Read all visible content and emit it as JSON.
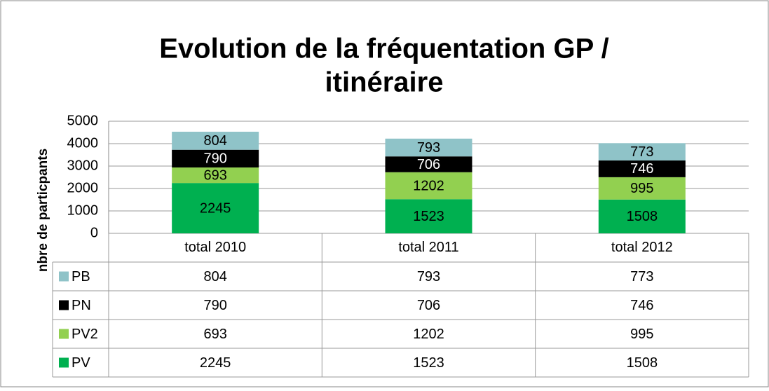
{
  "chart_data": {
    "type": "stacked_bar",
    "title": [
      "Evolution de la fréquentation GP /",
      "itinéraire"
    ],
    "y_label": "nbre de particpants",
    "categories": [
      "total 2010",
      "total 2011",
      "total 2012"
    ],
    "series": [
      {
        "name": "PV",
        "color": "#00b050",
        "values": [
          2245,
          1523,
          1508
        ]
      },
      {
        "name": "PV2",
        "color": "#92d050",
        "values": [
          693,
          1202,
          995
        ]
      },
      {
        "name": "PN",
        "color": "#000000",
        "values": [
          790,
          706,
          746
        ]
      },
      {
        "name": "PB",
        "color": "#8fc3c8",
        "values": [
          804,
          793,
          773
        ]
      }
    ],
    "ylim": [
      0,
      5000
    ],
    "yticks": [
      0,
      1000,
      2000,
      3000,
      4000,
      5000
    ],
    "grid": true,
    "data_table": true
  }
}
